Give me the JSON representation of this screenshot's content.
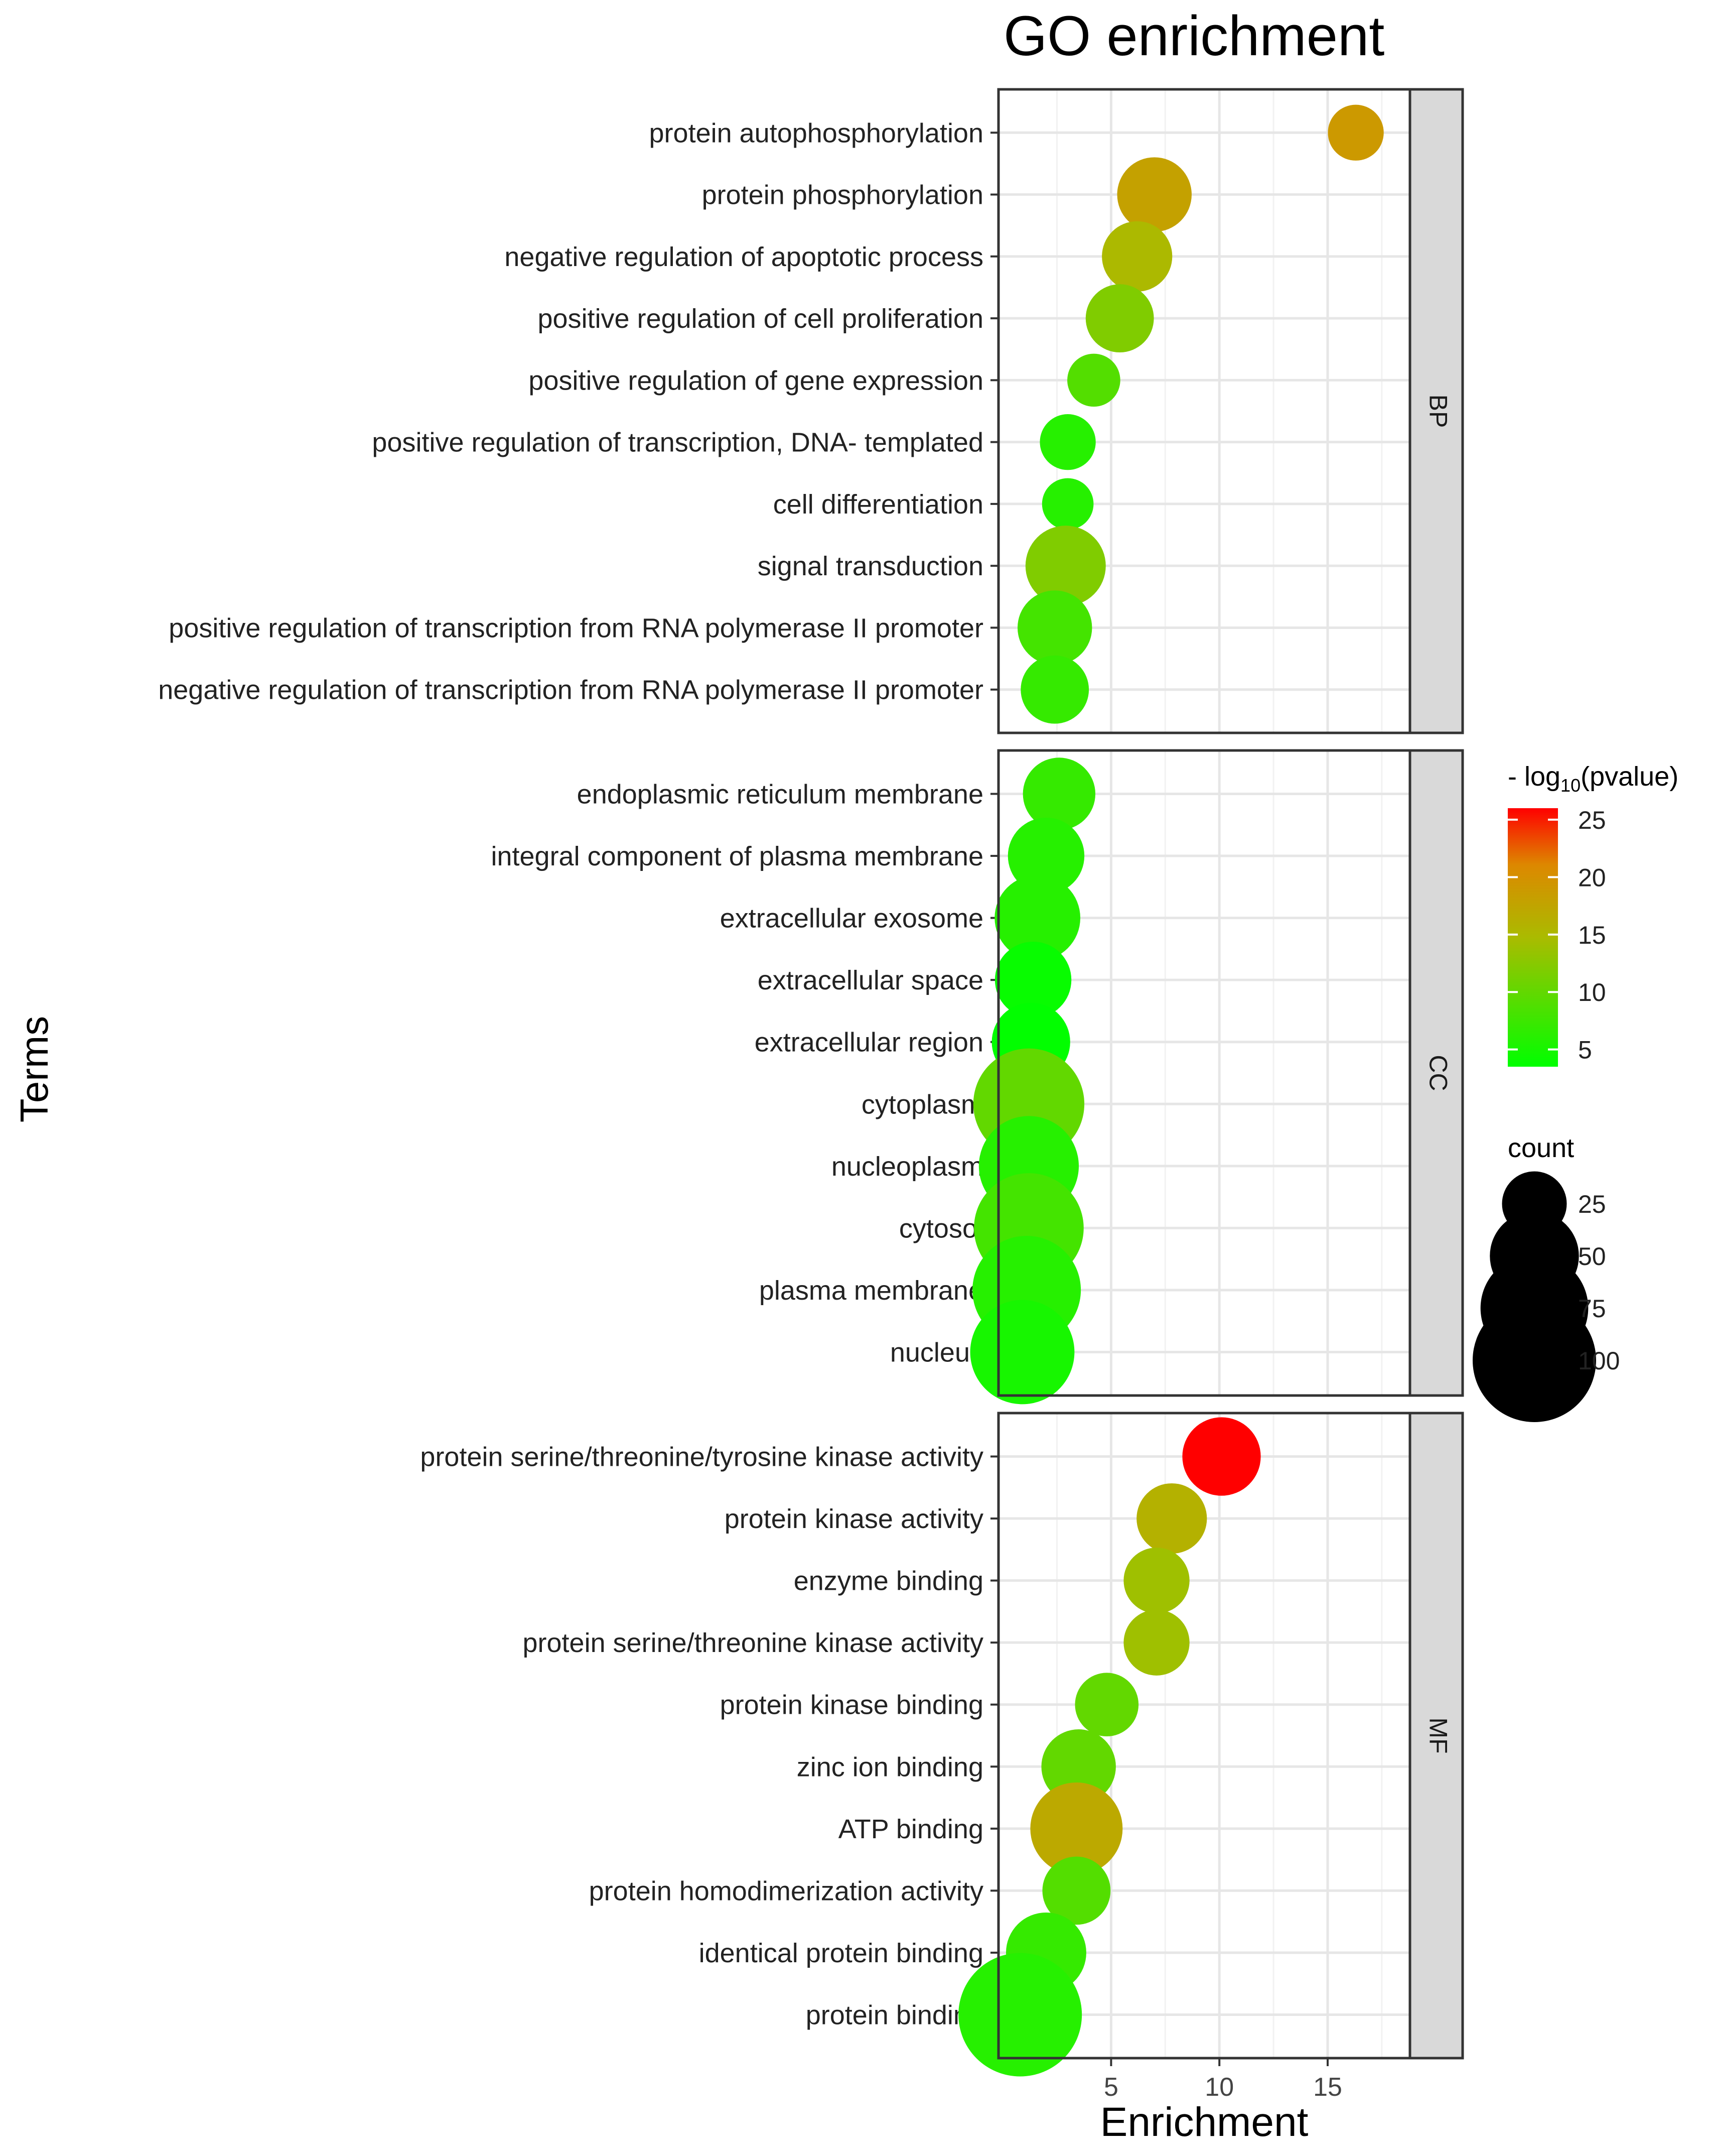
{
  "chart_data": {
    "type": "scatter",
    "title": "GO enrichment",
    "xlabel": "Enrichment",
    "ylabel": "Terms",
    "xlim": [
      -0.2,
      18.8
    ],
    "x_ticks": [
      5,
      10,
      15
    ],
    "grid": true,
    "color_legend": {
      "title_prefix": "- log",
      "title_sub": "10",
      "title_suffix": "(pvalue)",
      "range": [
        3.5,
        26
      ],
      "ticks": [
        5,
        10,
        15,
        20,
        25
      ],
      "low_color": "#00ff00",
      "high_color": "#ff0000"
    },
    "size_legend": {
      "title": "count",
      "values": [
        25,
        50,
        75,
        100
      ]
    },
    "panels": [
      {
        "strip": "BP",
        "terms": [
          {
            "label": "protein autophosphorylation",
            "enrichment": 16.3,
            "pvalue_log": 19,
            "count": 18
          },
          {
            "label": "protein phosphorylation",
            "enrichment": 7.0,
            "pvalue_log": 18,
            "count": 34
          },
          {
            "label": "negative regulation of apoptotic process",
            "enrichment": 6.2,
            "pvalue_log": 15,
            "count": 30
          },
          {
            "label": "positive regulation of cell proliferation",
            "enrichment": 5.4,
            "pvalue_log": 12,
            "count": 28
          },
          {
            "label": "positive regulation of gene expression",
            "enrichment": 4.2,
            "pvalue_log": 9,
            "count": 16
          },
          {
            "label": "positive regulation of transcription, DNA- templated",
            "enrichment": 3.0,
            "pvalue_log": 6,
            "count": 18
          },
          {
            "label": "cell differentiation",
            "enrichment": 3.0,
            "pvalue_log": 6,
            "count": 15
          },
          {
            "label": "signal transduction",
            "enrichment": 2.9,
            "pvalue_log": 12,
            "count": 40
          },
          {
            "label": "positive regulation of transcription from RNA polymerase II promoter",
            "enrichment": 2.4,
            "pvalue_log": 8,
            "count": 34
          },
          {
            "label": "negative regulation of transcription from RNA polymerase II promoter",
            "enrichment": 2.4,
            "pvalue_log": 7,
            "count": 28
          }
        ]
      },
      {
        "strip": "CC",
        "terms": [
          {
            "label": "endoplasmic reticulum membrane",
            "enrichment": 2.6,
            "pvalue_log": 7,
            "count": 32
          },
          {
            "label": "integral component of plasma membrane",
            "enrichment": 2.0,
            "pvalue_log": 6,
            "count": 36
          },
          {
            "label": "extracellular exosome",
            "enrichment": 1.6,
            "pvalue_log": 6,
            "count": 46
          },
          {
            "label": "extracellular space",
            "enrichment": 1.4,
            "pvalue_log": 4,
            "count": 36
          },
          {
            "label": "extracellular region",
            "enrichment": 1.3,
            "pvalue_log": 3.6,
            "count": 38
          },
          {
            "label": "cytoplasm",
            "enrichment": 1.2,
            "pvalue_log": 10,
            "count": 80
          },
          {
            "label": "nucleoplasm",
            "enrichment": 1.2,
            "pvalue_log": 6,
            "count": 64
          },
          {
            "label": "cytosol",
            "enrichment": 1.2,
            "pvalue_log": 8,
            "count": 78
          },
          {
            "label": "plasma membrane",
            "enrichment": 1.1,
            "pvalue_log": 6,
            "count": 76
          },
          {
            "label": "nucleus",
            "enrichment": 0.9,
            "pvalue_log": 5,
            "count": 70
          }
        ]
      },
      {
        "strip": "MF",
        "terms": [
          {
            "label": "protein serine/threonine/tyrosine kinase activity",
            "enrichment": 10.1,
            "pvalue_log": 26,
            "count": 38
          },
          {
            "label": "protein kinase activity",
            "enrichment": 7.8,
            "pvalue_log": 16,
            "count": 30
          },
          {
            "label": "enzyme binding",
            "enrichment": 7.1,
            "pvalue_log": 14,
            "count": 26
          },
          {
            "label": "protein serine/threonine kinase activity",
            "enrichment": 7.1,
            "pvalue_log": 14,
            "count": 26
          },
          {
            "label": "protein kinase binding",
            "enrichment": 4.8,
            "pvalue_log": 10,
            "count": 24
          },
          {
            "label": "zinc ion binding",
            "enrichment": 3.5,
            "pvalue_log": 10,
            "count": 34
          },
          {
            "label": "ATP binding",
            "enrichment": 3.4,
            "pvalue_log": 17,
            "count": 54
          },
          {
            "label": "protein homodimerization activity",
            "enrichment": 3.4,
            "pvalue_log": 9,
            "count": 28
          },
          {
            "label": "identical protein binding",
            "enrichment": 2.0,
            "pvalue_log": 7,
            "count": 40
          },
          {
            "label": "protein binding",
            "enrichment": 0.8,
            "pvalue_log": 6,
            "count": 100
          }
        ]
      }
    ]
  }
}
